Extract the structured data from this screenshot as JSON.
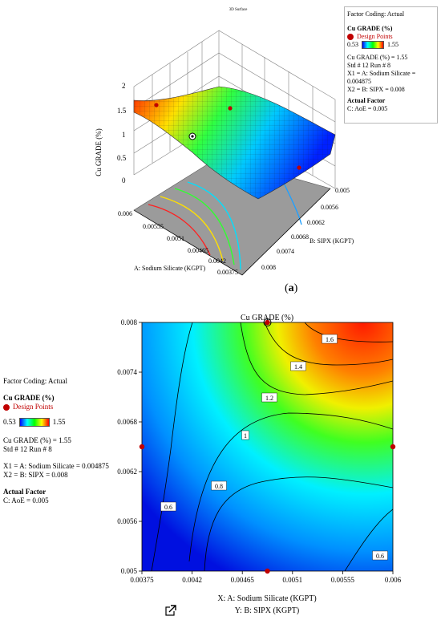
{
  "panel_a": {
    "title": "3D Surface",
    "caption_open": "(",
    "caption_letter": "a",
    "caption_close": ")",
    "zlabel": "Cu GRADE (%)",
    "xlabel": "A: Sodium Silicate  (KGPT)",
    "ylabel": "B: SIPX (KGPT)",
    "z_ticks": [
      "0",
      "0.5",
      "1",
      "1.5",
      "2"
    ],
    "x_ticks": [
      "0.006",
      "0.00555",
      "0.0051",
      "0.00465",
      "0.0042",
      "0.00375"
    ],
    "y_ticks": [
      "0.005",
      "0.0056",
      "0.0062",
      "0.0068",
      "0.0074",
      "0.008"
    ],
    "info": {
      "factor_coding": "Factor Coding: Actual",
      "response": "Cu GRADE (%)",
      "design_points": "Design Points",
      "range_min": "0.53",
      "range_max": "1.55",
      "value_line": "Cu GRADE (%) = 1.55",
      "std_line": "Std # 12 Run # 8",
      "x1_line": "X1 = A: Sodium Silicate  = 0.004875",
      "x2_line": "X2 = B: SIPX = 0.008",
      "actual_factor": "Actual Factor",
      "aoe_line": "C: AoE = 0.005"
    }
  },
  "panel_b": {
    "legend": {
      "factor_coding": "Factor Coding: Actual",
      "response": "Cu GRADE (%)",
      "design_points": "Design Points",
      "range_min": "0.53",
      "range_max": "1.55",
      "value_line": "Cu GRADE (%) = 1.55",
      "std_line": "Std # 12 Run # 8",
      "x1_line": "X1 = A: Sodium Silicate  = 0.004875",
      "x2_line": "X2 = B: SIPX = 0.008",
      "actual_factor": "Actual Factor",
      "aoe_line": "C: AoE = 0.005"
    }
  },
  "chart_data": [
    {
      "type": "surface",
      "zlabel": "Cu GRADE (%)",
      "xlabel": "A: Sodium Silicate  (KGPT)",
      "ylabel": "B: SIPX (KGPT)",
      "x_range": [
        0.00375,
        0.006
      ],
      "y_range": [
        0.005,
        0.008
      ],
      "z_range": [
        0,
        2
      ],
      "colorscale": [
        "#0000ff",
        "#00ffff",
        "#00ff00",
        "#ffff00",
        "#ff0000"
      ]
    },
    {
      "type": "contour",
      "title": "Cu GRADE (%)",
      "xlabel": "X: A: Sodium Silicate  (KGPT)",
      "ylabel": "Y: B: SIPX (KGPT)",
      "xlim": [
        0.00375,
        0.006
      ],
      "ylim": [
        0.005,
        0.008
      ],
      "x_ticks": [
        "0.00375",
        "0.0042",
        "0.00465",
        "0.0051",
        "0.00555",
        "0.006"
      ],
      "y_ticks": [
        "0.005",
        "0.0056",
        "0.0062",
        "0.0068",
        "0.0074",
        "0.008"
      ],
      "contour_levels": [
        0.6,
        0.8,
        1,
        1.2,
        1.4,
        1.6
      ],
      "contour_labels": [
        "0.6",
        "0.8",
        "1",
        "1.2",
        "1.4",
        "1.6",
        "0.6"
      ],
      "design_points": [
        {
          "x": 0.004875,
          "y": 0.008
        },
        {
          "x": 0.004875,
          "y": 0.005
        },
        {
          "x": 0.00375,
          "y": 0.0065
        },
        {
          "x": 0.006,
          "y": 0.0065
        }
      ],
      "highlighted_point": {
        "x": 0.004875,
        "y": 0.008,
        "value": 1.55
      }
    }
  ]
}
